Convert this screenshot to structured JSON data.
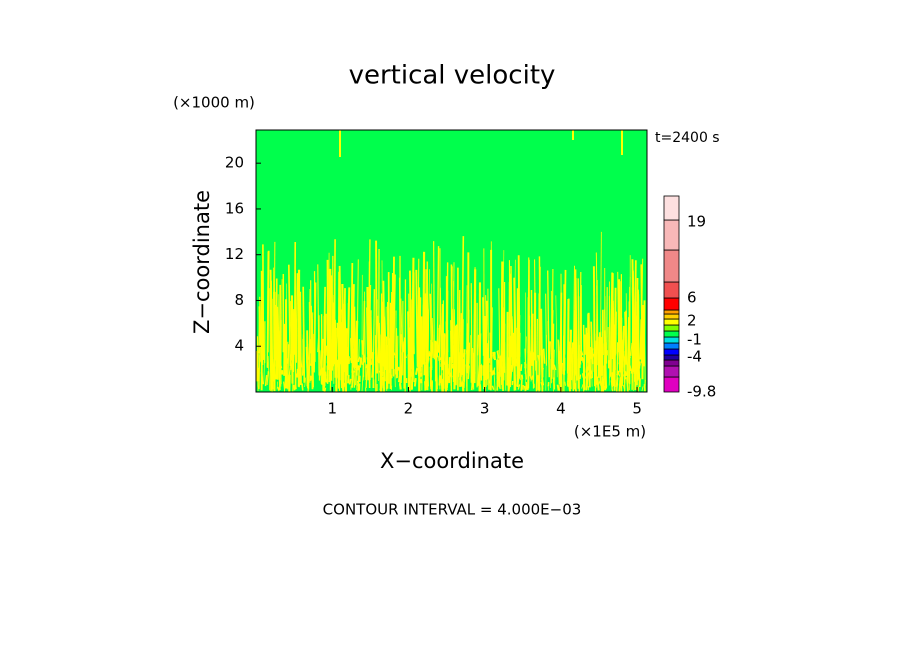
{
  "chart_data": {
    "type": "contour",
    "title": "vertical velocity",
    "x_label": "X−coordinate",
    "y_label": "Z−coordinate",
    "x_unit": "(×1E5 m)",
    "y_unit": "(×1000 m)",
    "time_label": "t=2400 s",
    "footer": "CONTOUR INTERVAL = 4.000E−03",
    "xlim": [
      0,
      5.13
    ],
    "xticks": [
      1,
      2,
      3,
      4,
      5
    ],
    "ylim": [
      0,
      22.9
    ],
    "yticks": [
      4,
      8,
      12,
      16,
      20
    ],
    "field_color": "#00ff4c",
    "streak_color": "#ffff00",
    "colorbar": {
      "colors": [
        "#e000c0",
        "#b010b0",
        "#800090",
        "#2000a0",
        "#0000ff",
        "#0080ff",
        "#00e0e0",
        "#00ff4c",
        "#80ff00",
        "#ffff00",
        "#ffd000",
        "#ffa000",
        "#ff0000",
        "#f05050",
        "#f08888",
        "#f8b8b8",
        "#fde0e0"
      ],
      "ticks": [
        -9.8,
        -4,
        -1,
        2,
        6,
        19
      ]
    }
  }
}
